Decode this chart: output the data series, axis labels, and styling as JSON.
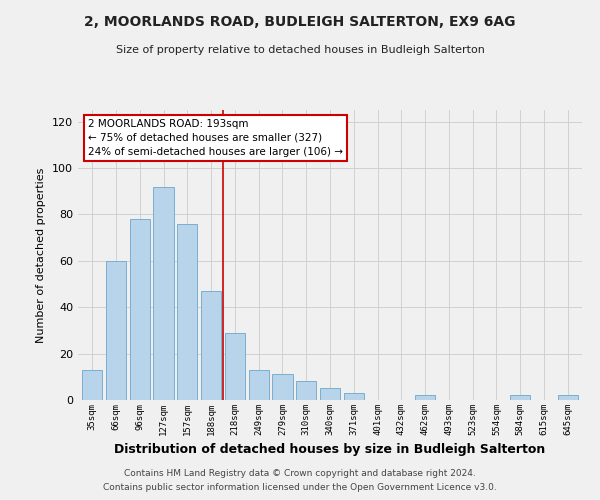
{
  "title1": "2, MOORLANDS ROAD, BUDLEIGH SALTERTON, EX9 6AG",
  "title2": "Size of property relative to detached houses in Budleigh Salterton",
  "xlabel": "Distribution of detached houses by size in Budleigh Salterton",
  "ylabel": "Number of detached properties",
  "bins": [
    "35sqm",
    "66sqm",
    "96sqm",
    "127sqm",
    "157sqm",
    "188sqm",
    "218sqm",
    "249sqm",
    "279sqm",
    "310sqm",
    "340sqm",
    "371sqm",
    "401sqm",
    "432sqm",
    "462sqm",
    "493sqm",
    "523sqm",
    "554sqm",
    "584sqm",
    "615sqm",
    "645sqm"
  ],
  "values": [
    13,
    60,
    78,
    92,
    76,
    47,
    29,
    13,
    11,
    8,
    5,
    3,
    0,
    0,
    2,
    0,
    0,
    0,
    2,
    0,
    2
  ],
  "bar_color": "#b8d4ea",
  "bar_edge_color": "#7aaed0",
  "vline_x_idx": 5,
  "vline_color": "#cc0000",
  "annotation_title": "2 MOORLANDS ROAD: 193sqm",
  "annotation_line1": "← 75% of detached houses are smaller (327)",
  "annotation_line2": "24% of semi-detached houses are larger (106) →",
  "annotation_box_facecolor": "#ffffff",
  "annotation_box_edgecolor": "#cc0000",
  "ylim": [
    0,
    125
  ],
  "yticks": [
    0,
    20,
    40,
    60,
    80,
    100,
    120
  ],
  "bg_color": "#f0f0f0",
  "footer1": "Contains HM Land Registry data © Crown copyright and database right 2024.",
  "footer2": "Contains public sector information licensed under the Open Government Licence v3.0."
}
